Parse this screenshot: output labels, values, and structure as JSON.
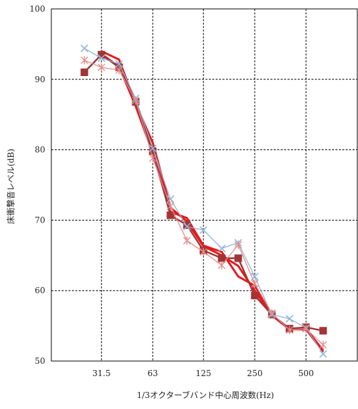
{
  "chart_data": {
    "type": "line",
    "title": "",
    "xlabel": "1/3オクターブバンド中心周波数(Hz)",
    "ylabel": "床衝撃音レベル(dB)",
    "x_tick_labels": [
      "31.5",
      "63",
      "125",
      "250",
      "500"
    ],
    "x_tick_positions": [
      31.5,
      63,
      125,
      250,
      500
    ],
    "x_scale": "log",
    "xlim": [
      16,
      1000
    ],
    "ylim": [
      50,
      100
    ],
    "y_ticks": [
      50,
      60,
      70,
      80,
      90,
      100
    ],
    "grid": true,
    "legend": "none",
    "x": [
      25,
      31.5,
      40,
      50,
      63,
      80,
      100,
      125,
      160,
      200,
      250,
      315,
      400,
      500,
      630
    ],
    "series": [
      {
        "color": "#e41a1c",
        "marker": "none",
        "values": [
          null,
          94.0,
          92.8,
          86.5,
          81.0,
          71.8,
          69.8,
          66.3,
          65.0,
          63.5,
          60.0,
          56.5,
          54.5,
          54.5,
          51.3
        ]
      },
      {
        "color": "#e41a1c",
        "marker": "none",
        "values": [
          null,
          93.6,
          91.8,
          86.2,
          79.5,
          71.2,
          70.3,
          66.4,
          65.5,
          62.0,
          60.7,
          56.5,
          54.5,
          54.6,
          51.5
        ]
      },
      {
        "color": "#a03535",
        "marker": "square",
        "values": [
          91.0,
          93.5,
          91.7,
          86.8,
          79.8,
          70.7,
          69.3,
          65.7,
          64.6,
          64.6,
          59.3,
          56.6,
          54.6,
          54.8,
          54.3
        ]
      },
      {
        "color": "#90b4d8",
        "marker": "x",
        "values": [
          94.4,
          93.0,
          92.2,
          87.3,
          80.2,
          73.0,
          69.1,
          68.6,
          66.0,
          66.8,
          62.0,
          56.6,
          56.0,
          54.7,
          51.0
        ]
      },
      {
        "color": "#e28d8d",
        "marker": "asterisk",
        "values": [
          92.7,
          91.7,
          91.3,
          87.0,
          78.8,
          72.0,
          67.1,
          65.5,
          63.6,
          66.5,
          61.0,
          56.8,
          54.4,
          54.6,
          52.3
        ]
      }
    ]
  }
}
